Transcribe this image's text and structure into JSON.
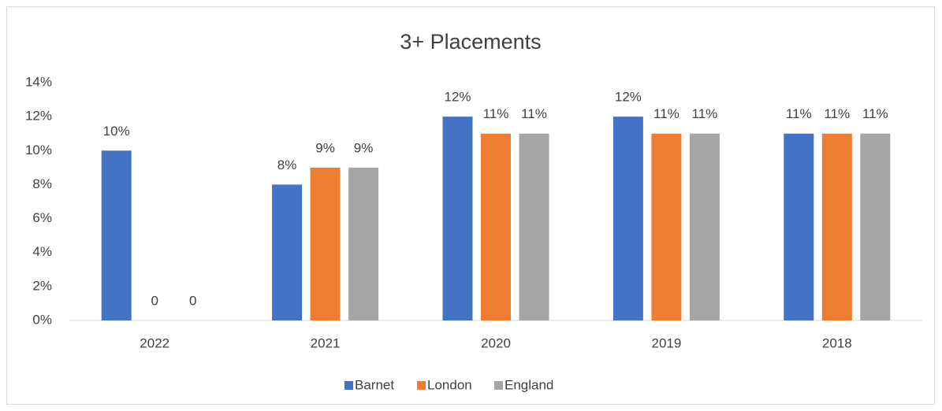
{
  "chart_data": {
    "type": "bar",
    "title": "3+ Placements",
    "categories": [
      "2022",
      "2021",
      "2020",
      "2019",
      "2018"
    ],
    "series": [
      {
        "name": "Barnet",
        "color": "#4472c4",
        "values": [
          10,
          8,
          12,
          12,
          11
        ],
        "value_labels": [
          "10%",
          "8%",
          "12%",
          "12%",
          "11%"
        ]
      },
      {
        "name": "London",
        "color": "#ed7d31",
        "values": [
          0,
          9,
          11,
          11,
          11
        ],
        "value_labels": [
          "0",
          "9%",
          "11%",
          "11%",
          "11%"
        ]
      },
      {
        "name": "England",
        "color": "#a5a5a5",
        "values": [
          0,
          9,
          11,
          11,
          11
        ],
        "value_labels": [
          "0",
          "9%",
          "11%",
          "11%",
          "11%"
        ]
      }
    ],
    "ylim": [
      0,
      14
    ],
    "yticks": [
      {
        "value": 0,
        "label": "0%"
      },
      {
        "value": 2,
        "label": "2%"
      },
      {
        "value": 4,
        "label": "4%"
      },
      {
        "value": 6,
        "label": "6%"
      },
      {
        "value": 8,
        "label": "8%"
      },
      {
        "value": 10,
        "label": "10%"
      },
      {
        "value": 12,
        "label": "12%"
      },
      {
        "value": 14,
        "label": "14%"
      }
    ],
    "grid": false,
    "legend": "bottom"
  }
}
